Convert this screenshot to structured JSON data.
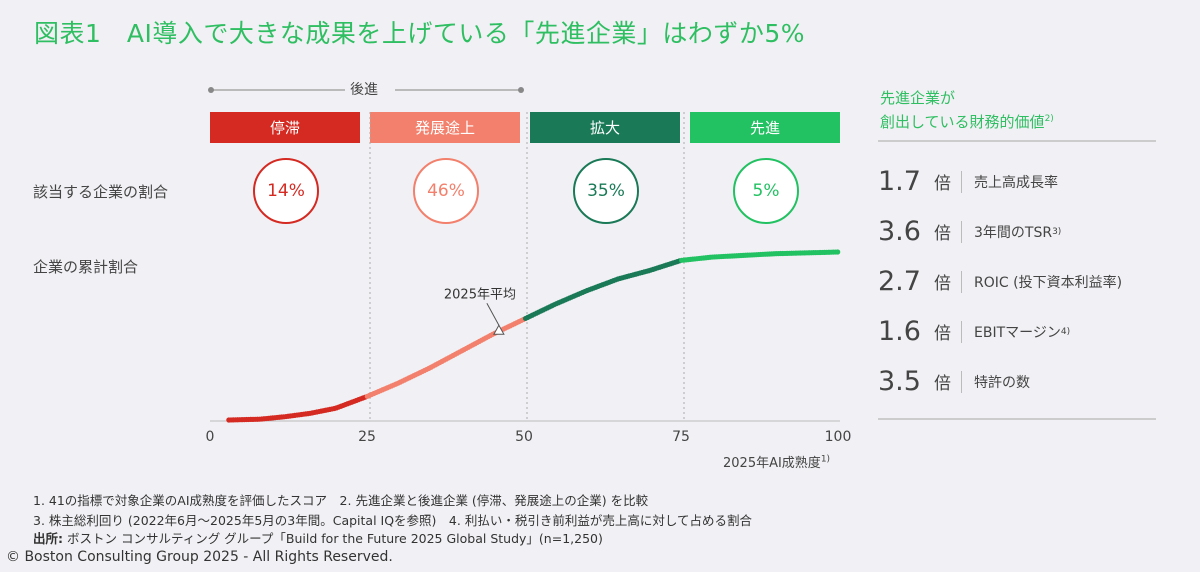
{
  "title": "図表1　AI導入で大きな成果を上げている「先進企業」はわずか5%",
  "group_label": "後進",
  "row_labels": {
    "share": "該当する企業の割合",
    "cumulative": "企業の累計割合"
  },
  "stages": [
    {
      "label": "停滞",
      "pct": "14%",
      "color": "#d42a22"
    },
    {
      "label": "発展途上",
      "pct": "46%",
      "color": "#f2806c"
    },
    {
      "label": "拡大",
      "pct": "35%",
      "color": "#1a7a57"
    },
    {
      "label": "先進",
      "pct": "5%",
      "color": "#22c162"
    }
  ],
  "right_panel": {
    "title_line1": "先進企業が",
    "title_line2": "創出している財務的価値",
    "title_note": "2)",
    "metrics": [
      {
        "value": "1.7",
        "unit": "倍",
        "label": "売上高成長率",
        "note": ""
      },
      {
        "value": "3.6",
        "unit": "倍",
        "label": "3年間のTSR",
        "note": "3)"
      },
      {
        "value": "2.7",
        "unit": "倍",
        "label": "ROIC (投下資本利益率)",
        "note": ""
      },
      {
        "value": "1.6",
        "unit": "倍",
        "label": "EBITマージン",
        "note": "4)"
      },
      {
        "value": "3.5",
        "unit": "倍",
        "label": "特許の数",
        "note": ""
      }
    ]
  },
  "chart_data": {
    "type": "scatter",
    "xlabel": "2025年AI成熟度",
    "xlabel_note": "1)",
    "xlim": [
      0,
      100
    ],
    "ylim": [
      0,
      100
    ],
    "xticks": [
      "0",
      "25",
      "50",
      "75",
      "100"
    ],
    "segment_bounds": [
      25,
      50,
      75
    ],
    "annotation": {
      "label": "2025年平均",
      "x": 46
    },
    "points": [
      [
        3,
        0
      ],
      [
        8,
        0.5
      ],
      [
        12,
        2
      ],
      [
        16,
        4
      ],
      [
        20,
        7
      ],
      [
        25,
        14
      ],
      [
        30,
        22
      ],
      [
        35,
        31
      ],
      [
        40,
        41
      ],
      [
        45,
        51
      ],
      [
        50,
        60
      ],
      [
        55,
        69
      ],
      [
        60,
        77
      ],
      [
        65,
        84
      ],
      [
        70,
        89
      ],
      [
        75,
        95
      ],
      [
        80,
        97
      ],
      [
        85,
        98
      ],
      [
        90,
        99
      ],
      [
        95,
        99.5
      ],
      [
        100,
        100
      ]
    ]
  },
  "footnotes": {
    "line1": "1. 41の指標で対象企業のAI成熟度を評価したスコア　2. 先進企業と後進企業 (停滞、発展途上の企業) を比較",
    "line2": "3. 株主総利回り (2022年6月～2025年5月の3年間。Capital IQを参照)　4. 利払い・税引き前利益が売上高に対して占める割合",
    "source_label": "出所:",
    "source": " ボストン コンサルティング グループ「Build for the Future 2025 Global Study」(n=1,250)",
    "copyright": "© Boston Consulting Group 2025 - All Rights Reserved."
  }
}
